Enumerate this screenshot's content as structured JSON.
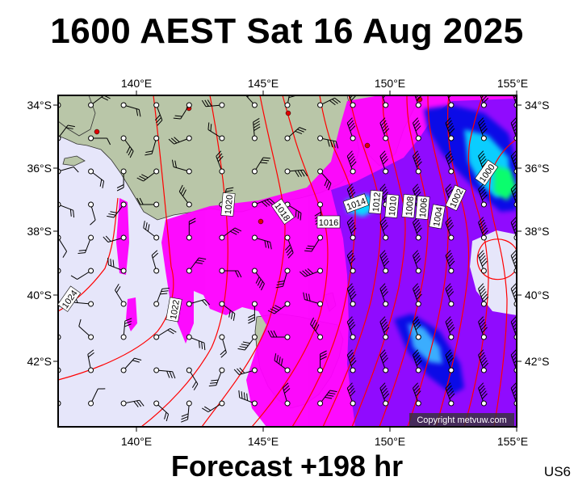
{
  "title": "1600 AEST Sat 16 Aug 2025",
  "footer": "Forecast +198 hr",
  "region_code": "US6",
  "copyright": "Copyright metvuw.com",
  "axes": {
    "lon_labels": [
      "140°E",
      "145°E",
      "150°E",
      "155°E"
    ],
    "lat_labels": [
      "34°S",
      "36°S",
      "38°S",
      "40°S",
      "42°S"
    ]
  },
  "isobar_labels": [
    "1024",
    "1022",
    "1020",
    "1018",
    "1016",
    "1014",
    "1012",
    "1010",
    "1008",
    "1006",
    "1004",
    "1002",
    "1000"
  ],
  "colors": {
    "ocean": "#e6e6fa",
    "land": "#b9c6a8",
    "isobar": "#ff0000",
    "rain_light": "#ff00ff",
    "rain_moderate": "#8c00ff",
    "rain_heavy": "#0000e6",
    "rain_intense": "#00ccff",
    "rain_extreme": "#00ff66"
  }
}
